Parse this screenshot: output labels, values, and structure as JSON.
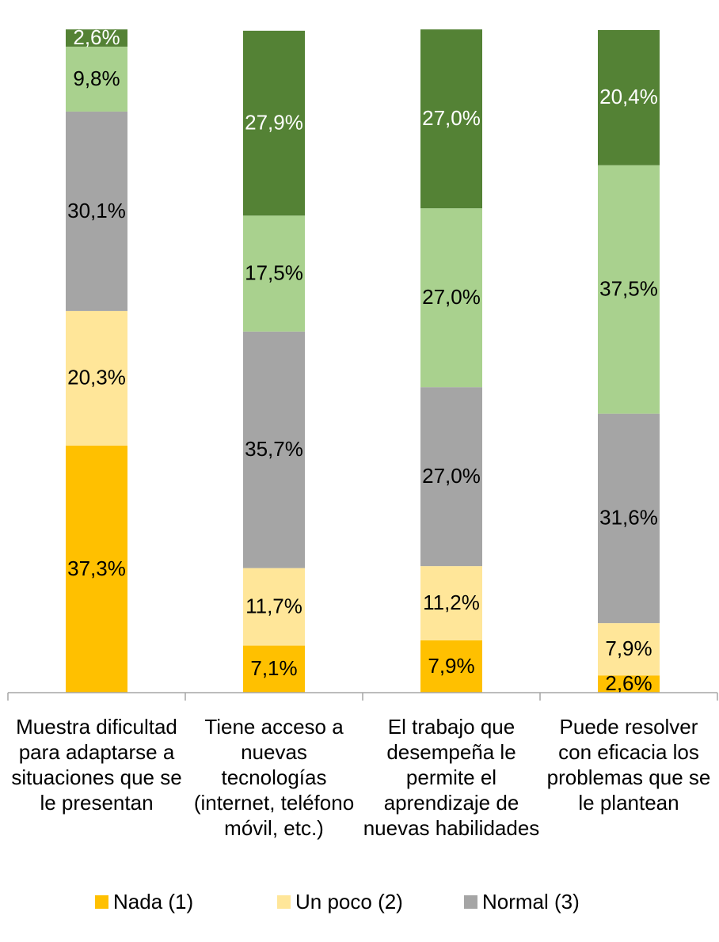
{
  "chart_data": {
    "type": "stacked_bar",
    "categories": [
      "Muestra dificultad para adaptarse a situaciones que se le presentan",
      "Tiene acceso a nuevas tecnologías (internet, teléfono móvil, etc.)",
      "El trabajo que desempeña le permite el aprendizaje de nuevas habilidades",
      "Puede resolver con eficacia los problemas que se le plantean"
    ],
    "ylim": [
      0,
      100
    ],
    "series": [
      {
        "name": "Nada (1)",
        "color": "#ffc000",
        "label_color": "#000000",
        "values": [
          37.3,
          7.1,
          7.9,
          2.6
        ],
        "value_labels": [
          "37,3%",
          "7,1%",
          "7,9%",
          "2,6%"
        ]
      },
      {
        "name": "Un poco (2)",
        "color": "#ffe699",
        "label_color": "#000000",
        "values": [
          20.3,
          11.7,
          11.2,
          7.9
        ],
        "value_labels": [
          "20,3%",
          "11,7%",
          "11,2%",
          "7,9%"
        ]
      },
      {
        "name": "Normal (3)",
        "color": "#a5a5a5",
        "label_color": "#000000",
        "values": [
          30.1,
          35.7,
          27.0,
          31.6
        ],
        "value_labels": [
          "30,1%",
          "35,7%",
          "27,0%",
          "31,6%"
        ]
      },
      {
        "color": "#a9d18e",
        "label_color": "#000000",
        "values": [
          9.8,
          17.5,
          27.0,
          37.5
        ],
        "value_labels": [
          "9,8%",
          "17,5%",
          "27,0%",
          "37,5%"
        ]
      },
      {
        "color": "#548235",
        "label_color": "#ffffff",
        "values": [
          2.6,
          27.9,
          27.0,
          20.4
        ],
        "value_labels": [
          "2,6%",
          "27,9%",
          "27,0%",
          "20,4%"
        ]
      }
    ],
    "legend": "bottom"
  }
}
